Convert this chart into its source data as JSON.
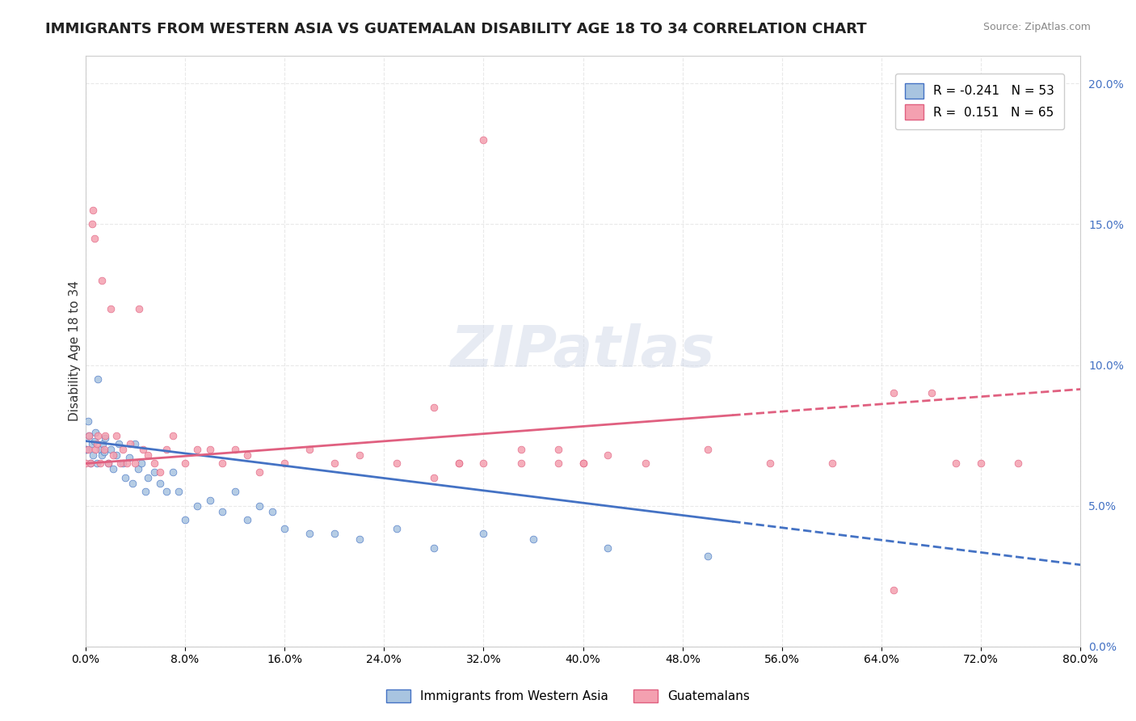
{
  "title": "IMMIGRANTS FROM WESTERN ASIA VS GUATEMALAN DISABILITY AGE 18 TO 34 CORRELATION CHART",
  "source": "Source: ZipAtlas.com",
  "ylabel": "Disability Age 18 to 34",
  "xlabel": "",
  "blue_R": -0.241,
  "blue_N": 53,
  "pink_R": 0.151,
  "pink_N": 65,
  "blue_color": "#a8c4e0",
  "blue_line_color": "#4472c4",
  "pink_color": "#f4a0b0",
  "pink_line_color": "#e06080",
  "background_color": "#ffffff",
  "grid_color": "#e0e0e0",
  "watermark_text": "ZIPatlas",
  "xmin": 0.0,
  "xmax": 0.8,
  "ymin": 0.0,
  "ymax": 0.21,
  "blue_scatter_x": [
    0.0,
    0.001,
    0.002,
    0.003,
    0.004,
    0.005,
    0.006,
    0.007,
    0.008,
    0.009,
    0.01,
    0.012,
    0.013,
    0.014,
    0.015,
    0.016,
    0.018,
    0.02,
    0.022,
    0.025,
    0.027,
    0.03,
    0.032,
    0.035,
    0.038,
    0.04,
    0.042,
    0.045,
    0.048,
    0.05,
    0.055,
    0.06,
    0.065,
    0.07,
    0.075,
    0.08,
    0.09,
    0.1,
    0.11,
    0.12,
    0.13,
    0.14,
    0.15,
    0.16,
    0.18,
    0.2,
    0.22,
    0.25,
    0.28,
    0.32,
    0.36,
    0.42,
    0.5
  ],
  "blue_scatter_y": [
    0.07,
    0.07,
    0.08,
    0.075,
    0.065,
    0.072,
    0.068,
    0.073,
    0.076,
    0.065,
    0.095,
    0.07,
    0.068,
    0.072,
    0.069,
    0.074,
    0.065,
    0.07,
    0.063,
    0.068,
    0.072,
    0.065,
    0.06,
    0.067,
    0.058,
    0.072,
    0.063,
    0.065,
    0.055,
    0.06,
    0.062,
    0.058,
    0.055,
    0.062,
    0.055,
    0.045,
    0.05,
    0.052,
    0.048,
    0.055,
    0.045,
    0.05,
    0.048,
    0.042,
    0.04,
    0.04,
    0.038,
    0.042,
    0.035,
    0.04,
    0.038,
    0.035,
    0.032
  ],
  "pink_scatter_x": [
    0.0,
    0.002,
    0.003,
    0.004,
    0.005,
    0.006,
    0.007,
    0.008,
    0.009,
    0.01,
    0.012,
    0.013,
    0.015,
    0.016,
    0.018,
    0.02,
    0.022,
    0.025,
    0.028,
    0.03,
    0.033,
    0.036,
    0.04,
    0.043,
    0.046,
    0.05,
    0.055,
    0.06,
    0.065,
    0.07,
    0.08,
    0.09,
    0.1,
    0.11,
    0.12,
    0.13,
    0.14,
    0.16,
    0.18,
    0.2,
    0.22,
    0.25,
    0.28,
    0.3,
    0.32,
    0.35,
    0.38,
    0.4,
    0.42,
    0.45,
    0.5,
    0.55,
    0.6,
    0.65,
    0.7,
    0.75,
    0.28,
    0.3,
    0.32,
    0.35,
    0.38,
    0.4,
    0.65,
    0.68,
    0.72
  ],
  "pink_scatter_y": [
    0.065,
    0.07,
    0.075,
    0.065,
    0.15,
    0.155,
    0.145,
    0.07,
    0.072,
    0.075,
    0.065,
    0.13,
    0.07,
    0.075,
    0.065,
    0.12,
    0.068,
    0.075,
    0.065,
    0.07,
    0.065,
    0.072,
    0.065,
    0.12,
    0.07,
    0.068,
    0.065,
    0.062,
    0.07,
    0.075,
    0.065,
    0.07,
    0.07,
    0.065,
    0.07,
    0.068,
    0.062,
    0.065,
    0.07,
    0.065,
    0.068,
    0.065,
    0.06,
    0.065,
    0.18,
    0.07,
    0.065,
    0.065,
    0.068,
    0.065,
    0.07,
    0.065,
    0.065,
    0.02,
    0.065,
    0.065,
    0.085,
    0.065,
    0.065,
    0.065,
    0.07,
    0.065,
    0.09,
    0.09,
    0.065
  ]
}
